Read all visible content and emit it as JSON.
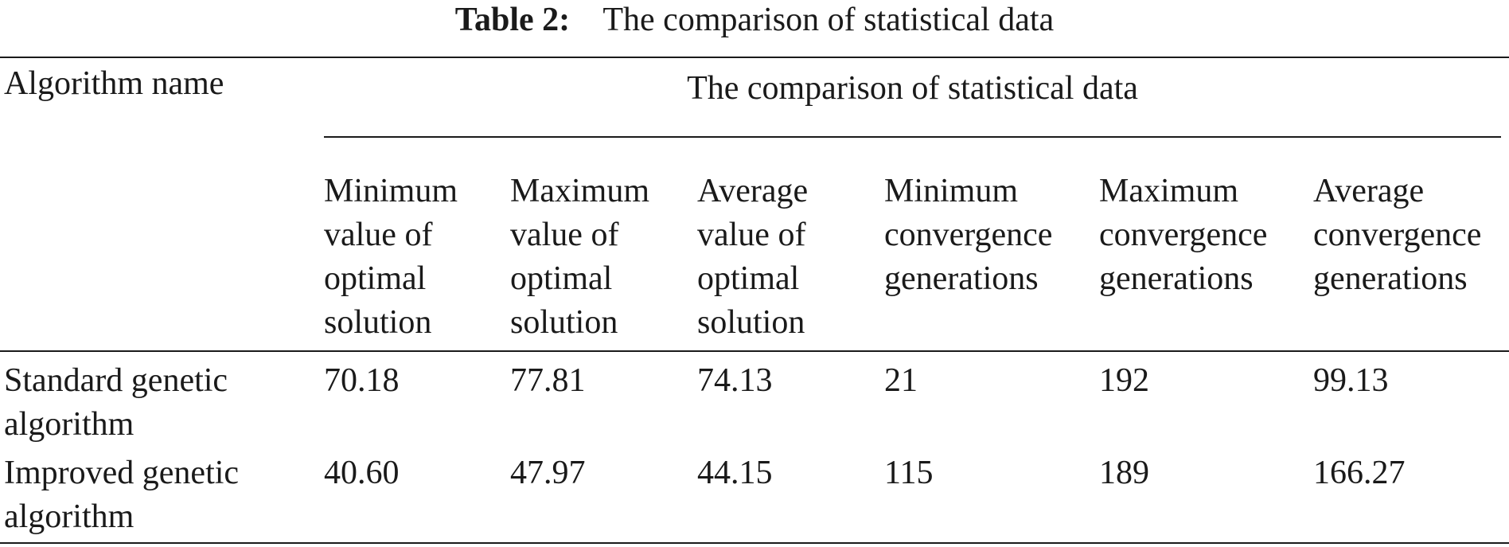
{
  "caption": {
    "label": "Table 2:",
    "text": "The comparison of statistical data"
  },
  "table": {
    "row_header_label": "Algorithm name",
    "group_header": "The comparison of statistical data",
    "columns": [
      "Minimum\nvalue of\noptimal\nsolution",
      "Maximum\nvalue of\noptimal\nsolution",
      "Average\nvalue of\noptimal\nsolution",
      "Minimum\nconvergence\ngenerations",
      "Maximum\nconvergence\ngenerations",
      "Average\nconvergence\ngenerations"
    ],
    "rows": [
      {
        "name": "Standard genetic\nalgorithm",
        "values": [
          "70.18",
          "77.81",
          "74.13",
          "21",
          "192",
          "99.13"
        ]
      },
      {
        "name": "Improved genetic\nalgorithm",
        "values": [
          "40.60",
          "47.97",
          "44.15",
          "115",
          "189",
          "166.27"
        ]
      }
    ]
  }
}
